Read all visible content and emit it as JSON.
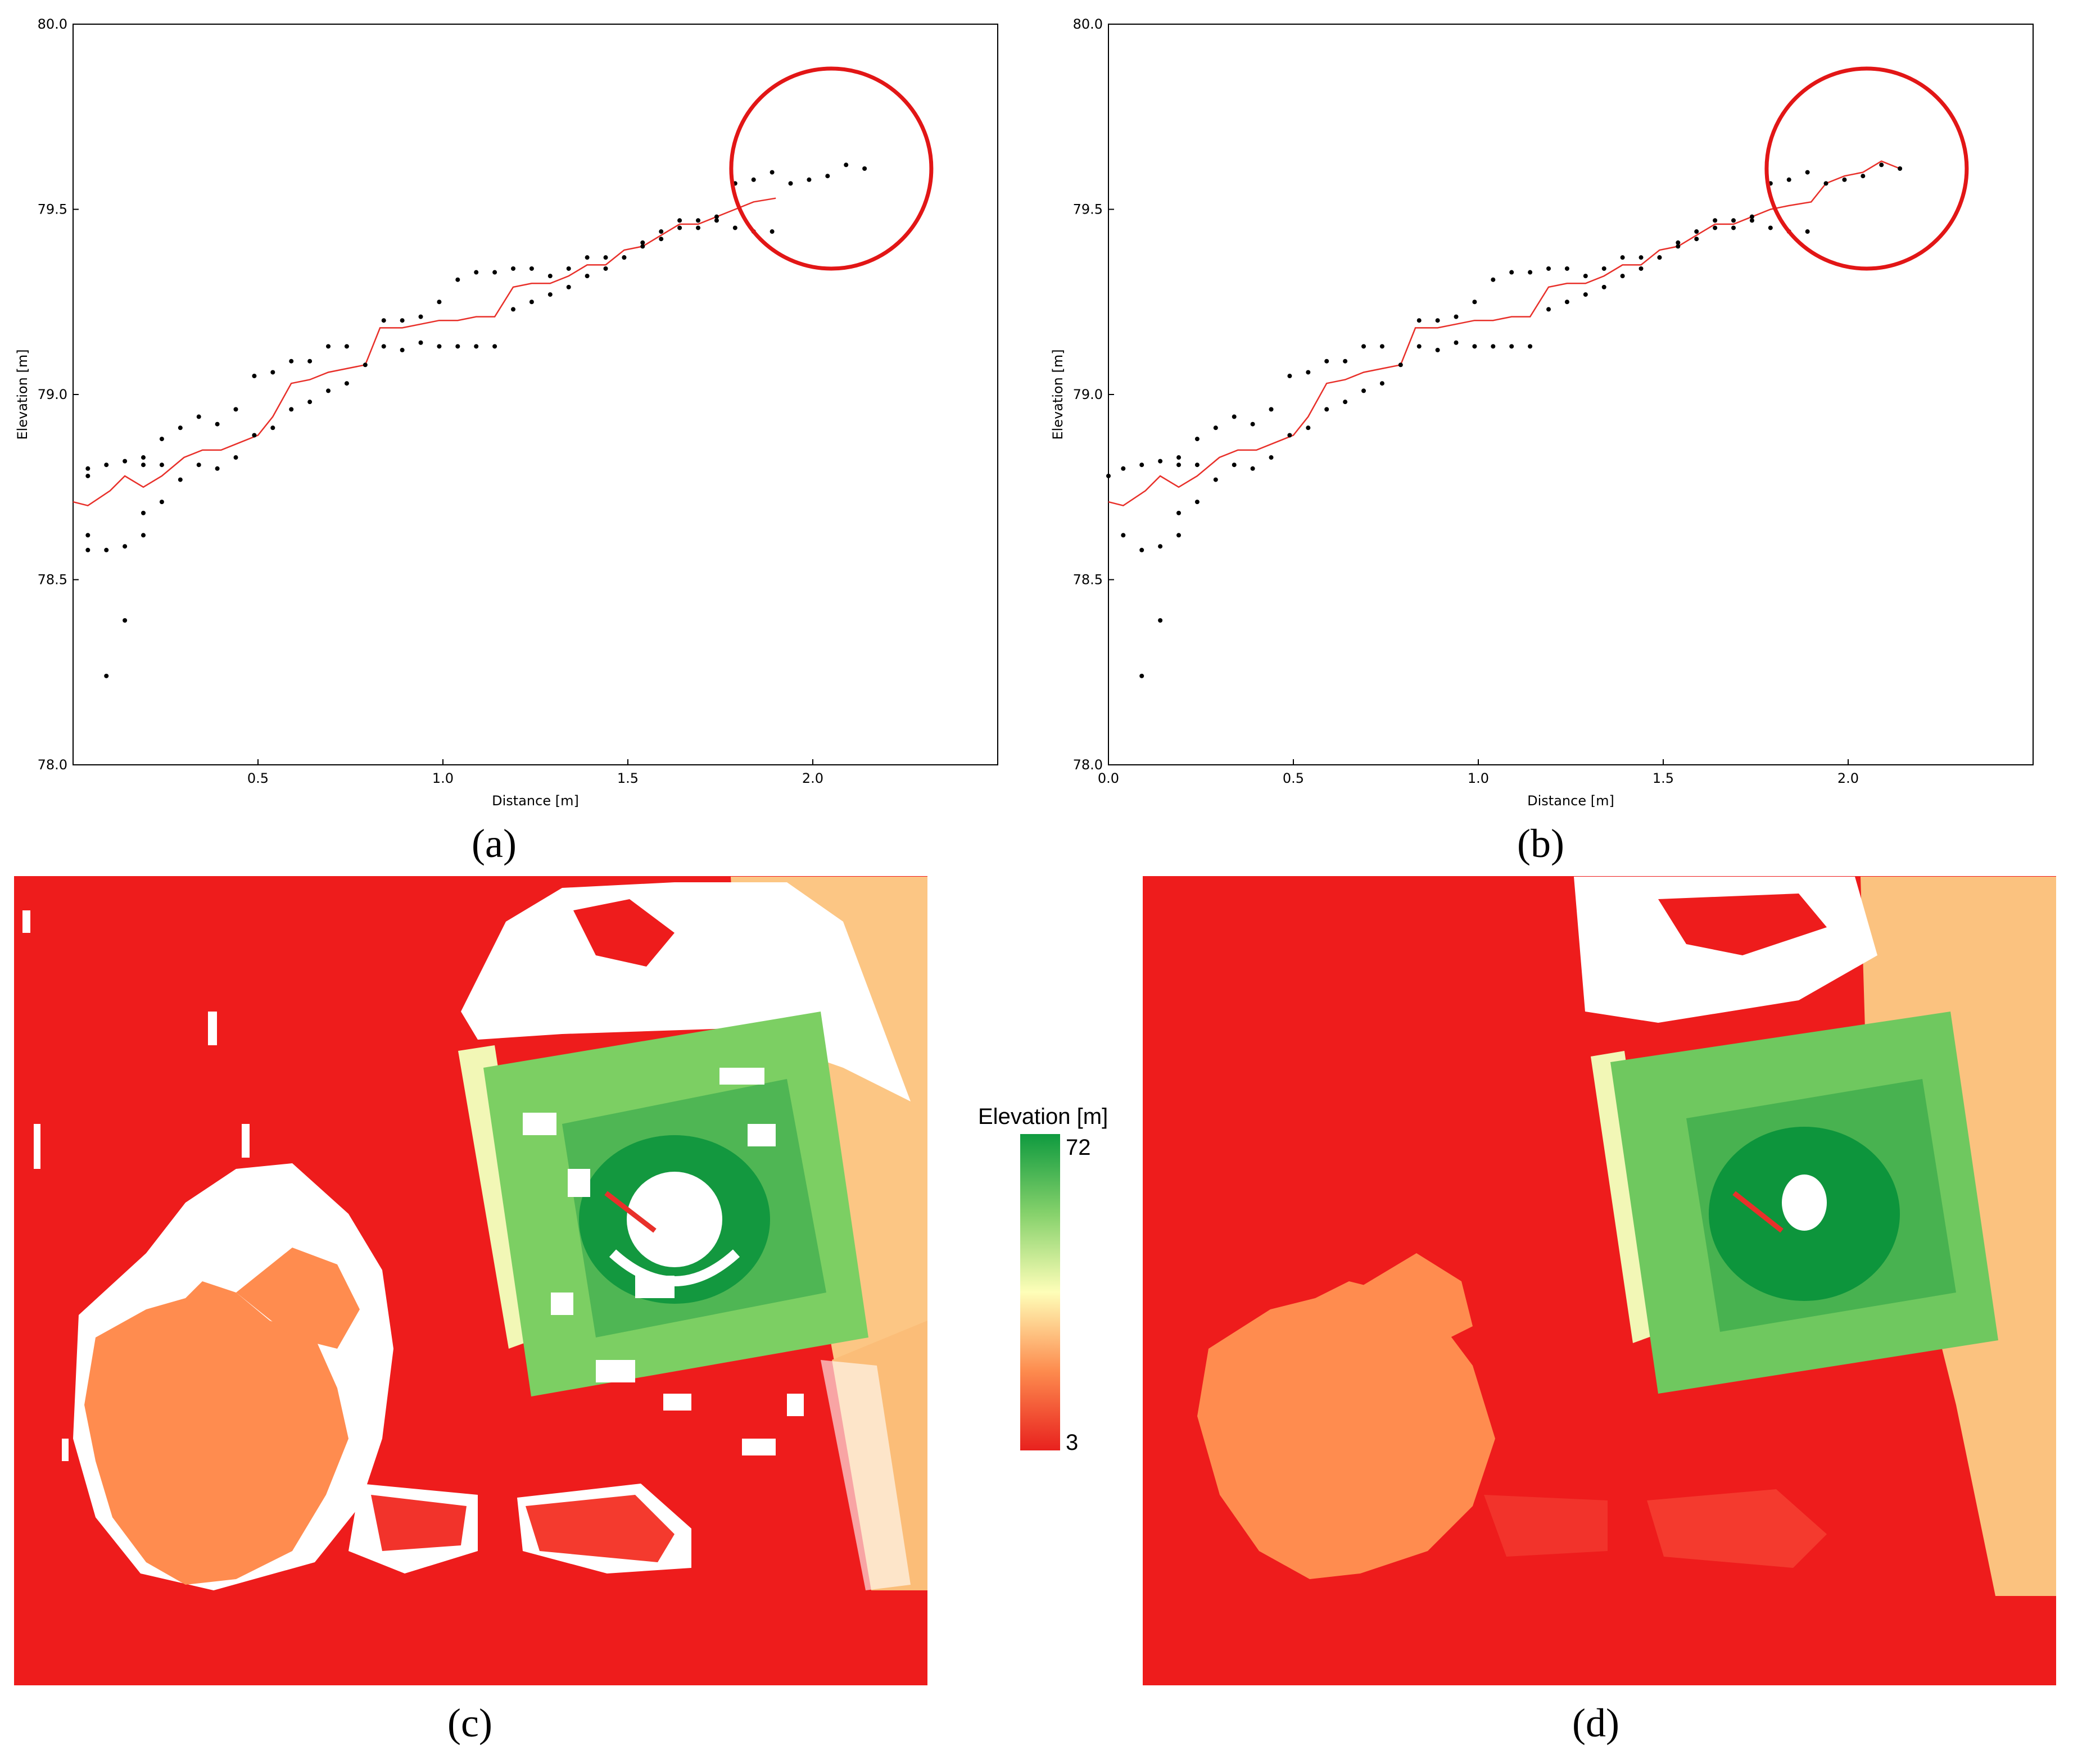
{
  "chart_data": [
    {
      "panel": "(a)",
      "type": "line",
      "xlabel": "Distance [m]",
      "ylabel": "Elevation [m]",
      "xlim": [
        0.0,
        2.5
      ],
      "ylim": [
        78.0,
        80.0
      ],
      "xticks": [
        "0.5",
        "1.0",
        "1.5",
        "2.0"
      ],
      "yticks": [
        "78.0",
        "78.5",
        "79.0",
        "79.5",
        "80.0"
      ],
      "grid": false,
      "series": [
        {
          "name": "profile",
          "color": "#e8302a",
          "x": [
            0.0,
            0.04,
            0.1,
            0.14,
            0.19,
            0.24,
            0.3,
            0.35,
            0.4,
            0.45,
            0.5,
            0.54,
            0.59,
            0.64,
            0.69,
            0.74,
            0.79,
            0.83,
            0.89,
            0.94,
            0.99,
            1.04,
            1.09,
            1.14,
            1.19,
            1.24,
            1.29,
            1.34,
            1.39,
            1.44,
            1.49,
            1.54,
            1.59,
            1.64,
            1.69,
            1.74,
            1.79,
            1.84,
            1.9
          ],
          "y": [
            78.71,
            78.7,
            78.74,
            78.78,
            78.75,
            78.78,
            78.83,
            78.85,
            78.85,
            78.87,
            78.89,
            78.94,
            79.03,
            79.04,
            79.06,
            79.07,
            79.08,
            79.18,
            79.18,
            79.19,
            79.2,
            79.2,
            79.21,
            79.21,
            79.29,
            79.3,
            79.3,
            79.32,
            79.35,
            79.35,
            79.39,
            79.4,
            79.43,
            79.46,
            79.46,
            79.48,
            79.5,
            79.52,
            79.53
          ]
        },
        {
          "name": "points",
          "color": "#000000",
          "x": [
            0.04,
            0.04,
            0.04,
            0.04,
            0.09,
            0.09,
            0.09,
            0.14,
            0.14,
            0.14,
            0.19,
            0.19,
            0.19,
            0.19,
            0.24,
            0.24,
            0.24,
            0.29,
            0.29,
            0.34,
            0.34,
            0.39,
            0.39,
            0.44,
            0.44,
            0.49,
            0.49,
            0.54,
            0.54,
            0.59,
            0.59,
            0.64,
            0.64,
            0.69,
            0.69,
            0.74,
            0.74,
            0.79,
            0.84,
            0.84,
            0.89,
            0.89,
            0.94,
            0.94,
            0.99,
            0.99,
            1.04,
            1.04,
            1.09,
            1.09,
            1.14,
            1.14,
            1.19,
            1.19,
            1.24,
            1.24,
            1.29,
            1.29,
            1.34,
            1.34,
            1.39,
            1.39,
            1.44,
            1.44,
            1.49,
            1.49,
            1.54,
            1.54,
            1.59,
            1.59,
            1.64,
            1.64,
            1.69,
            1.69,
            1.74,
            1.74,
            1.79,
            1.79,
            1.84,
            1.84,
            1.89,
            1.89,
            1.94,
            1.99,
            2.04,
            2.09,
            2.14
          ],
          "y": [
            78.8,
            78.78,
            78.62,
            78.58,
            78.81,
            78.58,
            78.24,
            78.82,
            78.59,
            78.39,
            78.83,
            78.81,
            78.68,
            78.62,
            78.88,
            78.81,
            78.71,
            78.91,
            78.77,
            78.94,
            78.81,
            78.92,
            78.8,
            78.96,
            78.83,
            79.05,
            78.89,
            79.06,
            78.91,
            79.09,
            78.96,
            79.09,
            78.98,
            79.13,
            79.01,
            79.13,
            79.03,
            79.08,
            79.2,
            79.13,
            79.2,
            79.12,
            79.21,
            79.14,
            79.25,
            79.13,
            79.31,
            79.13,
            79.33,
            79.13,
            79.33,
            79.13,
            79.34,
            79.23,
            79.34,
            79.25,
            79.32,
            79.27,
            79.34,
            79.29,
            79.37,
            79.32,
            79.37,
            79.34,
            79.37,
            79.37,
            79.41,
            79.4,
            79.44,
            79.42,
            79.47,
            79.45,
            79.47,
            79.45,
            79.47,
            79.48,
            79.57,
            79.45,
            79.58,
            79.44,
            79.6,
            79.44,
            79.57,
            79.58,
            79.59,
            79.62,
            79.61
          ]
        }
      ],
      "annotations": [
        "red circle highlighting ground points beyond the end of the profile"
      ]
    },
    {
      "panel": "(b)",
      "type": "line",
      "xlabel": "Distance [m]",
      "ylabel": "Elevation [m]",
      "xlim": [
        0.0,
        2.5
      ],
      "ylim": [
        78.0,
        80.0
      ],
      "xticks": [
        "0.0",
        "0.5",
        "1.0",
        "1.5",
        "2.0"
      ],
      "yticks": [
        "78.0",
        "78.5",
        "79.0",
        "79.5",
        "80.0"
      ],
      "grid": false,
      "series": [
        {
          "name": "profile",
          "color": "#e8302a",
          "x": [
            0.0,
            0.04,
            0.1,
            0.14,
            0.19,
            0.24,
            0.3,
            0.35,
            0.4,
            0.45,
            0.5,
            0.54,
            0.59,
            0.64,
            0.69,
            0.74,
            0.79,
            0.83,
            0.89,
            0.94,
            0.99,
            1.04,
            1.09,
            1.14,
            1.19,
            1.24,
            1.29,
            1.34,
            1.39,
            1.44,
            1.49,
            1.54,
            1.59,
            1.64,
            1.69,
            1.74,
            1.79,
            1.84,
            1.9,
            1.94,
            1.99,
            2.04,
            2.09,
            2.14
          ],
          "y": [
            78.71,
            78.7,
            78.74,
            78.78,
            78.75,
            78.78,
            78.83,
            78.85,
            78.85,
            78.87,
            78.89,
            78.94,
            79.03,
            79.04,
            79.06,
            79.07,
            79.08,
            79.18,
            79.18,
            79.19,
            79.2,
            79.2,
            79.21,
            79.21,
            79.29,
            79.3,
            79.3,
            79.32,
            79.35,
            79.35,
            79.39,
            79.4,
            79.43,
            79.46,
            79.46,
            79.48,
            79.5,
            79.51,
            79.52,
            79.57,
            79.59,
            79.6,
            79.63,
            79.61
          ]
        },
        {
          "name": "points",
          "color": "#000000",
          "x": [
            0.0,
            0.04,
            0.04,
            0.09,
            0.09,
            0.09,
            0.14,
            0.14,
            0.14,
            0.19,
            0.19,
            0.19,
            0.19,
            0.24,
            0.24,
            0.24,
            0.29,
            0.29,
            0.34,
            0.34,
            0.39,
            0.39,
            0.44,
            0.44,
            0.49,
            0.49,
            0.54,
            0.54,
            0.59,
            0.59,
            0.64,
            0.64,
            0.69,
            0.69,
            0.74,
            0.74,
            0.79,
            0.84,
            0.84,
            0.89,
            0.89,
            0.94,
            0.94,
            0.99,
            0.99,
            1.04,
            1.04,
            1.09,
            1.09,
            1.14,
            1.14,
            1.19,
            1.19,
            1.24,
            1.24,
            1.29,
            1.29,
            1.34,
            1.34,
            1.39,
            1.39,
            1.44,
            1.44,
            1.49,
            1.49,
            1.54,
            1.54,
            1.59,
            1.59,
            1.64,
            1.64,
            1.69,
            1.69,
            1.74,
            1.74,
            1.79,
            1.79,
            1.84,
            1.84,
            1.89,
            1.89,
            1.94,
            1.99,
            2.04,
            2.09,
            2.14
          ],
          "y": [
            78.78,
            78.8,
            78.62,
            78.81,
            78.58,
            78.24,
            78.82,
            78.59,
            78.39,
            78.83,
            78.81,
            78.68,
            78.62,
            78.88,
            78.81,
            78.71,
            78.91,
            78.77,
            78.94,
            78.81,
            78.92,
            78.8,
            78.96,
            78.83,
            79.05,
            78.89,
            79.06,
            78.91,
            79.09,
            78.96,
            79.09,
            78.98,
            79.13,
            79.01,
            79.13,
            79.03,
            79.08,
            79.2,
            79.13,
            79.2,
            79.12,
            79.21,
            79.14,
            79.25,
            79.13,
            79.31,
            79.13,
            79.33,
            79.13,
            79.33,
            79.13,
            79.34,
            79.23,
            79.34,
            79.25,
            79.32,
            79.27,
            79.34,
            79.29,
            79.37,
            79.32,
            79.37,
            79.34,
            79.37,
            79.37,
            79.41,
            79.4,
            79.44,
            79.42,
            79.47,
            79.45,
            79.47,
            79.45,
            79.47,
            79.48,
            79.57,
            79.45,
            79.58,
            79.44,
            79.6,
            79.44,
            79.57,
            79.58,
            79.59,
            79.62,
            79.61
          ]
        }
      ],
      "annotations": [
        "red circle highlighting the corrected profile end"
      ]
    },
    {
      "panel": "(c)",
      "type": "heatmap",
      "colorbar": {
        "title": "Elevation [m]",
        "max_label": "72",
        "min_label": "3",
        "colors": [
          "#e8211e",
          "#fd8b4e",
          "#fefeb8",
          "#85d16b",
          "#0f9a3f"
        ]
      }
    },
    {
      "panel": "(d)",
      "type": "heatmap"
    }
  ],
  "labels": {
    "a": "(a)",
    "b": "(b)",
    "c": "(c)",
    "d": "(d)"
  },
  "colors": {
    "red": "#ee1c1c",
    "orange": "#ff8a4a",
    "light": "#f2f7b6",
    "green": "#6ec45e",
    "darkgreen": "#0d953c",
    "profile": "#e8302a"
  }
}
